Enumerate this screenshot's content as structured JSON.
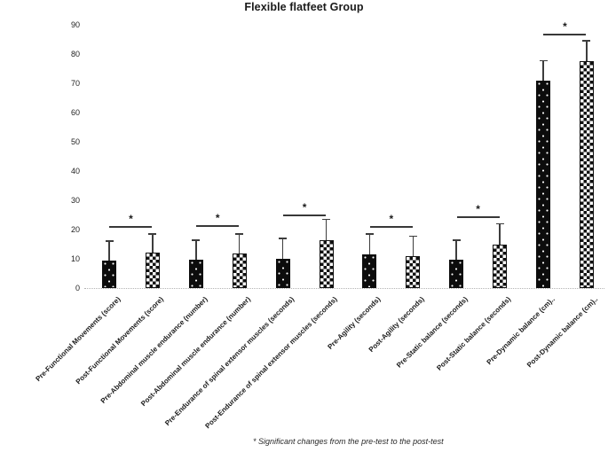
{
  "footnote": "* Significant changes from the pre-test to the post-test",
  "chart_data": {
    "type": "bar",
    "title": "Flexible flatfeet Group",
    "xlabel": "",
    "ylabel": "",
    "ylim": [
      0,
      90
    ],
    "yticks": [
      0,
      10,
      20,
      30,
      40,
      50,
      60,
      70,
      80,
      90
    ],
    "grid": "off",
    "legend": "none",
    "categories": [
      "Pre-Functional Movements (score)",
      "Post-Functional Movements (score)",
      "Pre-Abdominal muscle endurance (number)",
      "Post-Abdominal muscle endurance (number)",
      "Pre-Endurance of spinal extensor muscles (seconds)",
      "Post-Endurance of spinal extensor muscles (seconds)",
      "Pre-Agility (seconds)",
      "Post-Agility (seconds)",
      "Pre-Static balance (seconds)",
      "Post-Static balance (seconds)",
      "Pre-Dynamic balance (cm)..",
      "Post-Dynamic balance (cm).."
    ],
    "bars": [
      {
        "label": "Pre-Functional Movements (score)",
        "value": 9.4,
        "error_plus": 6.9,
        "pattern": "black-dotted"
      },
      {
        "label": "Post-Functional Movements (score)",
        "value": 12.2,
        "error_plus": 6.6,
        "pattern": "checkerboard"
      },
      {
        "label": "Pre-Abdominal muscle endurance (number)",
        "value": 9.7,
        "error_plus": 7.0,
        "pattern": "black-dotted"
      },
      {
        "label": "Post-Abdominal muscle endurance (number)",
        "value": 12.0,
        "error_plus": 6.8,
        "pattern": "checkerboard"
      },
      {
        "label": "Pre-Endurance of spinal extensor muscles (seconds)",
        "value": 10.1,
        "error_plus": 7.1,
        "pattern": "black-dotted"
      },
      {
        "label": "Post-Endurance of spinal extensor muscles (seconds)",
        "value": 16.4,
        "error_plus": 7.4,
        "pattern": "checkerboard"
      },
      {
        "label": "Pre-Agility (seconds)",
        "value": 11.5,
        "error_plus": 7.2,
        "pattern": "black-dotted"
      },
      {
        "label": "Post-Agility (seconds)",
        "value": 11.0,
        "error_plus": 7.0,
        "pattern": "checkerboard"
      },
      {
        "label": "Pre-Static balance (seconds)",
        "value": 9.7,
        "error_plus": 7.0,
        "pattern": "black-dotted"
      },
      {
        "label": "Post-Static balance (seconds)",
        "value": 15.0,
        "error_plus": 7.3,
        "pattern": "checkerboard"
      },
      {
        "label": "Pre-Dynamic balance (cm)..",
        "value": 71.0,
        "error_plus": 7.2,
        "pattern": "black-dotted"
      },
      {
        "label": "Post-Dynamic balance (cm)..",
        "value": 77.7,
        "error_plus": 7.4,
        "pattern": "checkerboard"
      }
    ],
    "significance": [
      {
        "pair": [
          0,
          1
        ],
        "bracket_y": 21.3,
        "symbol": "*"
      },
      {
        "pair": [
          2,
          3
        ],
        "bracket_y": 21.5,
        "symbol": "*"
      },
      {
        "pair": [
          4,
          5
        ],
        "bracket_y": 25.2,
        "symbol": "*"
      },
      {
        "pair": [
          6,
          7
        ],
        "bracket_y": 21.3,
        "symbol": "*"
      },
      {
        "pair": [
          8,
          9
        ],
        "bracket_y": 24.6,
        "symbol": "*"
      },
      {
        "pair": [
          10,
          11
        ],
        "bracket_y": 87.2,
        "symbol": "*"
      }
    ]
  }
}
